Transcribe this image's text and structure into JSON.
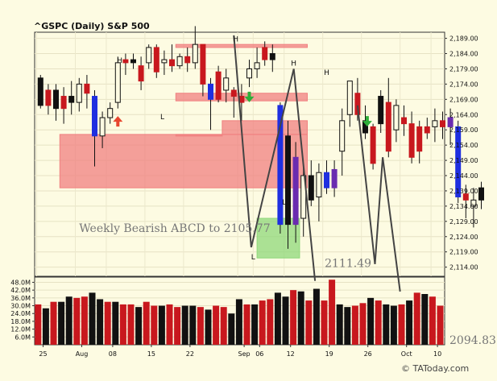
{
  "chart_data": {
    "type": "candlestick",
    "title": "^GSPC (Daily)  S&P 500",
    "price_axis": {
      "ylim": [
        2111,
        2191
      ],
      "ticks": [
        "2,189.00",
        "2,184.00",
        "2,179.00",
        "2,174.00",
        "2,169.00",
        "2,164.00",
        "2,159.00",
        "2,154.00",
        "2,149.00",
        "2,144.00",
        "2,139.00",
        "2,134.00",
        "2,129.00",
        "2,124.00",
        "2,119.00",
        "2,114.00"
      ],
      "tick_values": [
        2189,
        2184,
        2179,
        2174,
        2169,
        2164,
        2159,
        2154,
        2149,
        2144,
        2139,
        2134,
        2129,
        2124,
        2119,
        2114
      ]
    },
    "volume_axis": {
      "ylim": [
        0,
        52
      ],
      "ticks": [
        "48.0M",
        "42.0M",
        "36.0M",
        "30.0M",
        "24.0M",
        "18.0M",
        "12.0M",
        "6.0M"
      ],
      "tick_values": [
        48,
        42,
        36,
        30,
        24,
        18,
        12,
        6
      ]
    },
    "x_ticks": [
      {
        "label": "25",
        "idx": 0
      },
      {
        "label": "Aug",
        "idx": 5
      },
      {
        "label": "08",
        "idx": 9
      },
      {
        "label": "15",
        "idx": 14
      },
      {
        "label": "22",
        "idx": 19
      },
      {
        "label": "Sep",
        "idx": 26
      },
      {
        "label": "06",
        "idx": 28
      },
      {
        "label": "12",
        "idx": 32
      },
      {
        "label": "19",
        "idx": 37
      },
      {
        "label": "26",
        "idx": 42
      },
      {
        "label": "Oct",
        "idx": 47
      },
      {
        "label": "10",
        "idx": 51
      }
    ],
    "candles": [
      {
        "o": 2176,
        "h": 2177,
        "l": 2166,
        "c": 2167,
        "color": "black"
      },
      {
        "o": 2167,
        "h": 2174,
        "l": 2164,
        "c": 2172,
        "color": "red"
      },
      {
        "o": 2172,
        "h": 2174,
        "l": 2162,
        "c": 2166,
        "color": "black"
      },
      {
        "o": 2166,
        "h": 2173,
        "l": 2161,
        "c": 2170,
        "color": "red"
      },
      {
        "o": 2170,
        "h": 2175,
        "l": 2164,
        "c": 2168,
        "color": "black"
      },
      {
        "o": 2168,
        "h": 2176,
        "l": 2165,
        "c": 2174,
        "color": "hollow"
      },
      {
        "o": 2174,
        "h": 2177,
        "l": 2166,
        "c": 2171,
        "color": "red"
      },
      {
        "o": 2170,
        "h": 2172,
        "l": 2147,
        "c": 2157,
        "color": "blue"
      },
      {
        "o": 2157,
        "h": 2165,
        "l": 2153,
        "c": 2163,
        "color": "hollow"
      },
      {
        "o": 2163,
        "h": 2168,
        "l": 2161,
        "c": 2166,
        "color": "hollow"
      },
      {
        "o": 2168,
        "h": 2183,
        "l": 2166,
        "c": 2181,
        "color": "hollow"
      },
      {
        "o": 2181,
        "h": 2184,
        "l": 2177,
        "c": 2182,
        "color": "red"
      },
      {
        "o": 2182,
        "h": 2184,
        "l": 2179,
        "c": 2181,
        "color": "black"
      },
      {
        "o": 2180,
        "h": 2183,
        "l": 2172,
        "c": 2175,
        "color": "red"
      },
      {
        "o": 2181,
        "h": 2187,
        "l": 2179,
        "c": 2186,
        "color": "hollow"
      },
      {
        "o": 2186,
        "h": 2187,
        "l": 2176,
        "c": 2178,
        "color": "red"
      },
      {
        "o": 2181,
        "h": 2185,
        "l": 2177,
        "c": 2182,
        "color": "hollow"
      },
      {
        "o": 2182,
        "h": 2187,
        "l": 2178,
        "c": 2180,
        "color": "red"
      },
      {
        "o": 2180,
        "h": 2184,
        "l": 2179,
        "c": 2183,
        "color": "hollow"
      },
      {
        "o": 2183,
        "h": 2186,
        "l": 2178,
        "c": 2181,
        "color": "red"
      },
      {
        "o": 2181,
        "h": 2193,
        "l": 2179,
        "c": 2187,
        "color": "hollow"
      },
      {
        "o": 2187,
        "h": 2187,
        "l": 2170,
        "c": 2174,
        "color": "red"
      },
      {
        "o": 2174,
        "h": 2176,
        "l": 2159,
        "c": 2169,
        "color": "blue"
      },
      {
        "o": 2169,
        "h": 2180,
        "l": 2168,
        "c": 2178,
        "color": "red"
      },
      {
        "o": 2172,
        "h": 2179,
        "l": 2168,
        "c": 2176,
        "color": "hollow"
      },
      {
        "o": 2172,
        "h": 2173,
        "l": 2163,
        "c": 2170,
        "color": "red"
      },
      {
        "o": 2170,
        "h": 2174,
        "l": 2162,
        "c": 2168,
        "color": "red"
      },
      {
        "o": 2176,
        "h": 2182,
        "l": 2173,
        "c": 2179,
        "color": "hollow"
      },
      {
        "o": 2179,
        "h": 2186,
        "l": 2176,
        "c": 2181,
        "color": "hollow"
      },
      {
        "o": 2182,
        "h": 2188,
        "l": 2180,
        "c": 2186,
        "color": "red"
      },
      {
        "o": 2184,
        "h": 2187,
        "l": 2178,
        "c": 2182,
        "color": "black"
      },
      {
        "o": 2167,
        "h": 2168,
        "l": 2125,
        "c": 2128,
        "color": "blue"
      },
      {
        "o": 2157,
        "h": 2162,
        "l": 2120,
        "c": 2128,
        "color": "black"
      },
      {
        "o": 2150,
        "h": 2155,
        "l": 2122,
        "c": 2128,
        "color": "purple"
      },
      {
        "o": 2130,
        "h": 2147,
        "l": 2124,
        "c": 2144,
        "color": "hollow"
      },
      {
        "o": 2144,
        "h": 2149,
        "l": 2134,
        "c": 2136,
        "color": "black"
      },
      {
        "o": 2137,
        "h": 2148,
        "l": 2129,
        "c": 2145,
        "color": "hollow"
      },
      {
        "o": 2145,
        "h": 2149,
        "l": 2138,
        "c": 2140,
        "color": "blue"
      },
      {
        "o": 2140,
        "h": 2149,
        "l": 2137,
        "c": 2146,
        "color": "purple"
      },
      {
        "o": 2152,
        "h": 2166,
        "l": 2144,
        "c": 2162,
        "color": "hollow"
      },
      {
        "o": 2164,
        "h": 2175,
        "l": 2160,
        "c": 2175,
        "color": "hollow"
      },
      {
        "o": 2171,
        "h": 2176,
        "l": 2162,
        "c": 2164,
        "color": "red"
      },
      {
        "o": 2162,
        "h": 2167,
        "l": 2156,
        "c": 2158,
        "color": "black"
      },
      {
        "o": 2148,
        "h": 2161,
        "l": 2146,
        "c": 2160,
        "color": "red"
      },
      {
        "o": 2170,
        "h": 2172,
        "l": 2158,
        "c": 2161,
        "color": "black"
      },
      {
        "o": 2168,
        "h": 2176,
        "l": 2150,
        "c": 2152,
        "color": "red"
      },
      {
        "o": 2159,
        "h": 2169,
        "l": 2155,
        "c": 2167,
        "color": "hollow"
      },
      {
        "o": 2163,
        "h": 2167,
        "l": 2157,
        "c": 2161,
        "color": "red"
      },
      {
        "o": 2161,
        "h": 2165,
        "l": 2148,
        "c": 2150,
        "color": "red"
      },
      {
        "o": 2152,
        "h": 2162,
        "l": 2148,
        "c": 2160,
        "color": "red"
      },
      {
        "o": 2160,
        "h": 2163,
        "l": 2156,
        "c": 2158,
        "color": "red"
      },
      {
        "o": 2160,
        "h": 2166,
        "l": 2155,
        "c": 2162,
        "color": "hollow"
      },
      {
        "o": 2162,
        "h": 2165,
        "l": 2156,
        "c": 2160,
        "color": "red"
      },
      {
        "o": 2163,
        "h": 2166,
        "l": 2154,
        "c": 2160,
        "color": "purple"
      },
      {
        "o": 2160,
        "h": 2162,
        "l": 2135,
        "c": 2137,
        "color": "blue"
      },
      {
        "o": 2138,
        "h": 2141,
        "l": 2130,
        "c": 2136,
        "color": "red"
      },
      {
        "o": 2134,
        "h": 2140,
        "l": 2127,
        "c": 2136,
        "color": "hollow"
      },
      {
        "o": 2136,
        "h": 2142,
        "l": 2133,
        "c": 2140,
        "color": "black"
      }
    ],
    "volume": [
      {
        "v": 31,
        "color": "red"
      },
      {
        "v": 28,
        "color": "black"
      },
      {
        "v": 33,
        "color": "red"
      },
      {
        "v": 33,
        "color": "black"
      },
      {
        "v": 37,
        "color": "black"
      },
      {
        "v": 36,
        "color": "red"
      },
      {
        "v": 37,
        "color": "red"
      },
      {
        "v": 40,
        "color": "black"
      },
      {
        "v": 35,
        "color": "black"
      },
      {
        "v": 33,
        "color": "red"
      },
      {
        "v": 33,
        "color": "black"
      },
      {
        "v": 31,
        "color": "red"
      },
      {
        "v": 31,
        "color": "red"
      },
      {
        "v": 29,
        "color": "black"
      },
      {
        "v": 33,
        "color": "red"
      },
      {
        "v": 30,
        "color": "red"
      },
      {
        "v": 30,
        "color": "black"
      },
      {
        "v": 31,
        "color": "red"
      },
      {
        "v": 29,
        "color": "red"
      },
      {
        "v": 30,
        "color": "black"
      },
      {
        "v": 30,
        "color": "black"
      },
      {
        "v": 29,
        "color": "red"
      },
      {
        "v": 27,
        "color": "black"
      },
      {
        "v": 30,
        "color": "red"
      },
      {
        "v": 29,
        "color": "red"
      },
      {
        "v": 24,
        "color": "black"
      },
      {
        "v": 35,
        "color": "black"
      },
      {
        "v": 31,
        "color": "red"
      },
      {
        "v": 31,
        "color": "black"
      },
      {
        "v": 34,
        "color": "red"
      },
      {
        "v": 35,
        "color": "red"
      },
      {
        "v": 40,
        "color": "black"
      },
      {
        "v": 37,
        "color": "black"
      },
      {
        "v": 42,
        "color": "red"
      },
      {
        "v": 41,
        "color": "black"
      },
      {
        "v": 34,
        "color": "red"
      },
      {
        "v": 43,
        "color": "black"
      },
      {
        "v": 34,
        "color": "red"
      },
      {
        "v": 50,
        "color": "red"
      },
      {
        "v": 31,
        "color": "black"
      },
      {
        "v": 29,
        "color": "black"
      },
      {
        "v": 30,
        "color": "red"
      },
      {
        "v": 32,
        "color": "red"
      },
      {
        "v": 36,
        "color": "black"
      },
      {
        "v": 34,
        "color": "red"
      },
      {
        "v": 31,
        "color": "black"
      },
      {
        "v": 30,
        "color": "black"
      },
      {
        "v": 31,
        "color": "red"
      },
      {
        "v": 34,
        "color": "black"
      },
      {
        "v": 40,
        "color": "red"
      },
      {
        "v": 39,
        "color": "black"
      },
      {
        "v": 37,
        "color": "red"
      },
      {
        "v": 30,
        "color": "red"
      },
      {
        "v": 37,
        "color": "black"
      },
      {
        "v": 32,
        "color": "red"
      },
      {
        "v": 33,
        "color": "red"
      },
      {
        "v": 31,
        "color": "red"
      },
      {
        "v": 34,
        "color": "black"
      },
      {
        "v": 36,
        "color": "red"
      },
      {
        "v": 35,
        "color": "black"
      }
    ],
    "zones": [
      {
        "from_idx": 36,
        "to_idx": 70,
        "top": 2187,
        "bottom": 2186,
        "color": "#f08080"
      },
      {
        "from_idx": 36,
        "to_idx": 70,
        "top": 2171,
        "bottom": 2168.5,
        "color": "#f08080"
      },
      {
        "from_idx": 48,
        "to_idx": 70,
        "top": 2162,
        "bottom": 2157.5,
        "color": "#f08080"
      },
      {
        "from_idx": 36,
        "to_idx": 48,
        "top": 2157.5,
        "bottom": 2157.5,
        "color": "#f08080"
      },
      {
        "from_idx": 6,
        "to_idx": 70,
        "top": 2157.5,
        "bottom": 2140,
        "color": "#f08080"
      },
      {
        "from_idx": 57,
        "to_idx": 68,
        "top": 2130,
        "bottom": 2117,
        "color": "#8fd87a"
      }
    ],
    "abcd_lines": [
      {
        "idx1": 51.0,
        "v1": 2190.0,
        "idx2": 55.5,
        "v2": 2120.5
      },
      {
        "idx1": 55.5,
        "v1": 2120.5,
        "idx2": 66.5,
        "v2": 2179.0
      },
      {
        "idx1": 66.5,
        "v1": 2179.0,
        "idx2": 72.0,
        "v2": 2109.5
      },
      {
        "idx1": 83.0,
        "v1": 2167.0,
        "idx2": 87.5,
        "v2": 2115.0
      },
      {
        "idx1": 87.5,
        "v1": 2115.0,
        "idx2": 89.5,
        "v2": 2150.0
      },
      {
        "idx1": 89.5,
        "v1": 2150.0,
        "idx2": 94.0,
        "v2": 2106.0
      }
    ],
    "pivot_labels": [
      {
        "text": "H",
        "idx": 21.5,
        "v": 2181.0
      },
      {
        "text": "L",
        "idx": 32.5,
        "v": 2162.5
      },
      {
        "text": "H",
        "idx": 51.5,
        "v": 2188.0
      },
      {
        "text": "L",
        "idx": 56.0,
        "v": 2116.5
      },
      {
        "text": "H",
        "idx": 66.5,
        "v": 2180.0
      },
      {
        "text": "L",
        "idx": 64.0,
        "v": 2134.5
      },
      {
        "text": "H",
        "idx": 75.0,
        "v": 2177.0
      }
    ],
    "arrows": [
      {
        "dir": "up",
        "color": "#e8462f",
        "idx": 21.0,
        "v": 2163.5
      },
      {
        "dir": "down",
        "color": "#2eae3a",
        "idx": 55.0,
        "v": 2171.5
      },
      {
        "dir": "down",
        "color": "#2eae3a",
        "idx": 85.5,
        "v": 2163.5
      }
    ],
    "annotations": [
      {
        "text": "Weekly Bearish ABCD to 2105.77",
        "idx": 11.0,
        "v": 2125.5
      },
      {
        "text": "2111.49",
        "idx": 74.5,
        "v": 2114.0
      }
    ],
    "outside_label": "2094.83"
  },
  "credit": "© TAToday.com"
}
